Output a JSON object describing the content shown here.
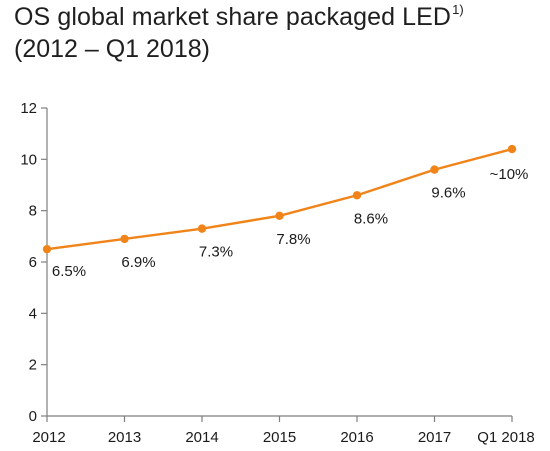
{
  "title": {
    "main": "OS global market share packaged LED",
    "footnote_marker": "1)",
    "subtitle": "(2012 – Q1 2018)"
  },
  "colors": {
    "series": "#f08419",
    "axis": "#7f7f7f",
    "text": "#1a1a1a"
  },
  "chart_data": {
    "type": "line",
    "title": "OS global market share packaged LED",
    "subtitle": "(2012 – Q1 2018)",
    "xlabel": "",
    "ylabel": "",
    "categories": [
      "2012",
      "2013",
      "2014",
      "2015",
      "2016",
      "2017",
      "Q1 2018"
    ],
    "series": [
      {
        "values": [
          6.5,
          6.9,
          7.3,
          7.8,
          8.6,
          9.6,
          10.4
        ],
        "data_labels": [
          "6.5%",
          "6.9%",
          "7.3%",
          "7.8%",
          "8.6%",
          "9.6%",
          "~10%"
        ]
      }
    ],
    "ylim": [
      0,
      12
    ],
    "yticks": [
      "0",
      "2",
      "4",
      "6",
      "8",
      "10",
      "12"
    ],
    "grid": false,
    "legend": "none"
  }
}
